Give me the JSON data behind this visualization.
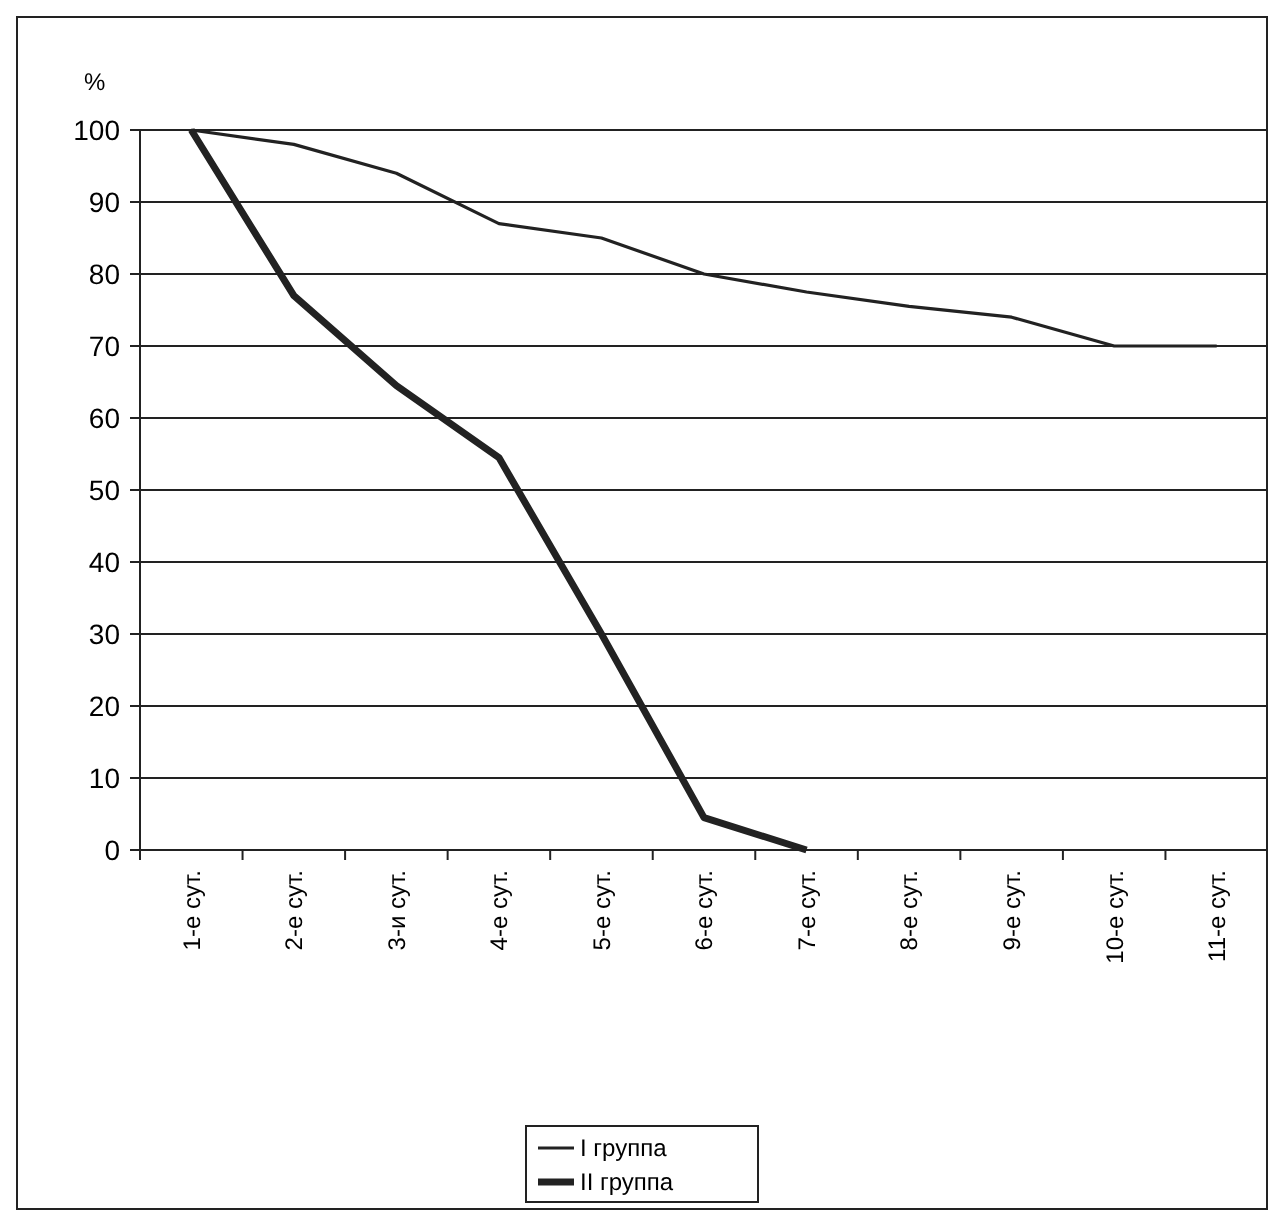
{
  "chart_data": {
    "type": "line",
    "ylabel": "%",
    "categories": [
      "1-е сут.",
      "2-е сут.",
      "3-и сут.",
      "4-е сут.",
      "5-е сут.",
      "6-е сут.",
      "7-е сут.",
      "8-е сут.",
      "9-е сут.",
      "10-е сут.",
      "11-е сут."
    ],
    "series": [
      {
        "name": "I группа",
        "color": "#222222",
        "values": [
          100,
          98,
          94,
          87,
          85,
          80,
          77.5,
          75.5,
          74,
          70,
          70
        ]
      },
      {
        "name": "II группа",
        "color": "#222222",
        "values": [
          100,
          77,
          64.5,
          54.5,
          30,
          4.5,
          0,
          null,
          null,
          null,
          null
        ]
      }
    ],
    "ylim": [
      0,
      100
    ],
    "yticks": [
      0,
      10,
      20,
      30,
      40,
      50,
      60,
      70,
      80,
      90,
      100
    ],
    "grid": "y",
    "legend": "bottom",
    "marker": "none"
  }
}
